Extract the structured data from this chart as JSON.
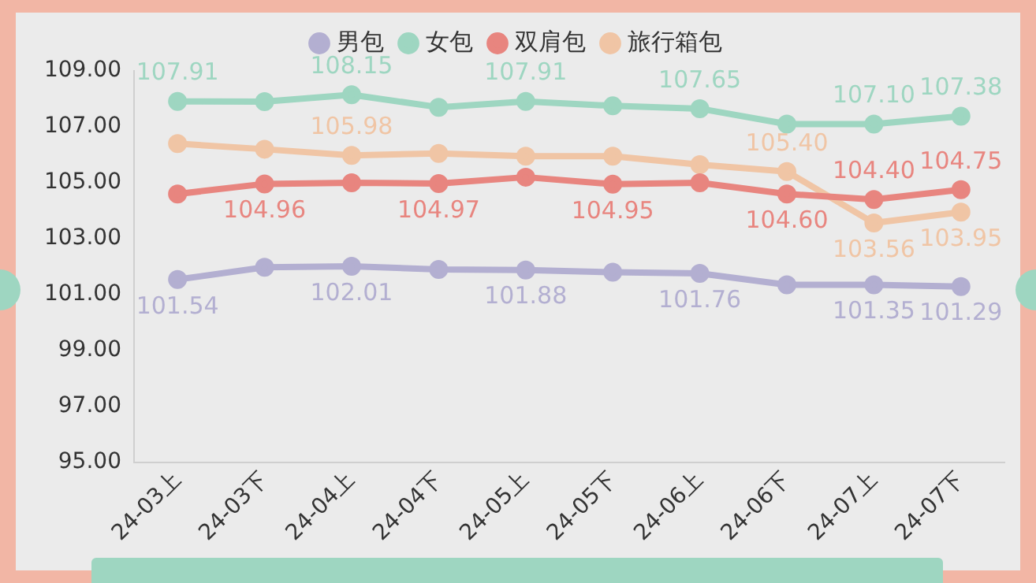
{
  "chart_data": {
    "type": "line",
    "categories": [
      "24-03上",
      "24-03下",
      "24-04上",
      "24-04下",
      "24-05上",
      "24-05下",
      "24-06上",
      "24-06下",
      "24-07上",
      "24-07下"
    ],
    "series": [
      {
        "name": "男包",
        "color": "#b3afd1",
        "values": [
          101.54,
          101.98,
          102.01,
          101.9,
          101.88,
          101.8,
          101.76,
          101.35,
          101.35,
          101.29
        ],
        "value_labels": [
          "101.54",
          null,
          "102.01",
          null,
          "101.88",
          null,
          "101.76",
          null,
          "101.35",
          "101.29"
        ]
      },
      {
        "name": "女包",
        "color": "#9ed6c1",
        "values": [
          107.91,
          107.9,
          108.15,
          107.7,
          107.91,
          107.75,
          107.65,
          107.1,
          107.1,
          107.38
        ],
        "value_labels": [
          "107.91",
          null,
          "108.15",
          null,
          "107.91",
          null,
          "107.65",
          null,
          "107.10",
          "107.38"
        ]
      },
      {
        "name": "双肩包",
        "color": "#e8857f",
        "values": [
          104.6,
          104.96,
          105.0,
          104.97,
          105.2,
          104.95,
          105.0,
          104.6,
          104.4,
          104.75
        ],
        "value_labels": [
          null,
          "104.96",
          null,
          "104.97",
          null,
          "104.95",
          null,
          "104.60",
          "104.40",
          "104.75"
        ]
      },
      {
        "name": "旅行箱包",
        "color": "#f0c5a5",
        "values": [
          106.4,
          106.2,
          105.98,
          106.05,
          105.95,
          105.95,
          105.65,
          105.4,
          103.56,
          103.95
        ],
        "value_labels": [
          null,
          null,
          "105.98",
          null,
          null,
          null,
          null,
          "105.40",
          "103.56",
          "103.95"
        ]
      }
    ],
    "ylim": [
      95,
      109
    ],
    "yticks": [
      {
        "value": 95,
        "label": "95.00"
      },
      {
        "value": 97,
        "label": "97.00"
      },
      {
        "value": 99,
        "label": "99.00"
      },
      {
        "value": 101,
        "label": "101.00"
      },
      {
        "value": 103,
        "label": "103.00"
      },
      {
        "value": 105,
        "label": "105.00"
      },
      {
        "value": 107,
        "label": "107.00"
      },
      {
        "value": 109,
        "label": "109.00"
      }
    ],
    "grid": false,
    "legend": "top",
    "marker": "circle",
    "line_style": "solid"
  }
}
